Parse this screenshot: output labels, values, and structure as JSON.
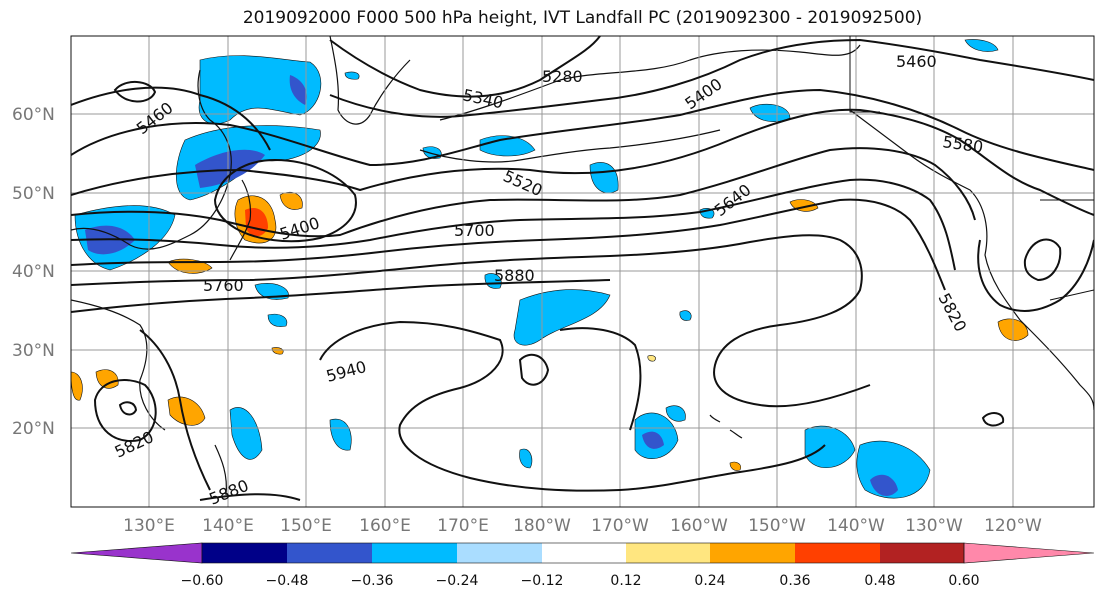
{
  "title": "2019092000 F000 500 hPa height, IVT Landfall PC (2019092300 - 2019092500)",
  "map": {
    "lat_labels": [
      "60°N",
      "50°N",
      "40°N",
      "30°N",
      "20°N"
    ],
    "lon_labels": [
      "130°E",
      "140°E",
      "150°E",
      "160°E",
      "170°E",
      "180°W",
      "170°W",
      "160°W",
      "150°W",
      "140°W",
      "130°W",
      "120°W"
    ],
    "contour_labels": [
      "5460",
      "5280",
      "5340",
      "5400",
      "5460",
      "5580",
      "5520",
      "5640",
      "5400",
      "5700",
      "5880",
      "5760",
      "5820",
      "5940",
      "5820",
      "5880"
    ]
  },
  "colorbar": {
    "colors": [
      "#9933cc",
      "#000088",
      "#3355cc",
      "#00bbff",
      "#aaddff",
      "#ffffff",
      "#ffe680",
      "#ffa500",
      "#ff4000",
      "#b22222",
      "#ff88aa"
    ],
    "ticks": [
      "−0.60",
      "−0.48",
      "−0.36",
      "−0.24",
      "−0.12",
      "0.12",
      "0.24",
      "0.36",
      "0.48",
      "0.60"
    ]
  }
}
